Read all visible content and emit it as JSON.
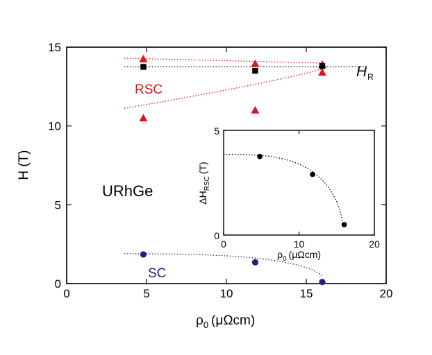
{
  "chart_data": [
    {
      "type": "scatter",
      "name": "main",
      "xlabel": "ρ0 (μΩcm)",
      "xlabel_symbol": "ρ",
      "xlabel_sub": "0",
      "xlabel_unit": "(μΩcm)",
      "ylabel": "H (T)",
      "xlim": [
        0,
        20
      ],
      "ylim": [
        0,
        15
      ],
      "xticks": [
        0,
        5,
        10,
        15,
        20
      ],
      "yticks": [
        0,
        5,
        10,
        15
      ],
      "series": [
        {
          "name": "RSC upper",
          "marker": "triangle",
          "color": "#e0141e",
          "x": [
            4.8,
            11.8,
            16.0
          ],
          "y": [
            14.25,
            13.95,
            13.9
          ]
        },
        {
          "name": "RSC lower",
          "marker": "triangle",
          "color": "#e0141e",
          "x": [
            4.8,
            11.8,
            16.0
          ],
          "y": [
            10.5,
            11.0,
            13.4
          ]
        },
        {
          "name": "H_R",
          "marker": "square",
          "color": "#000000",
          "x": [
            4.8,
            11.8,
            16.0
          ],
          "y": [
            13.75,
            13.5,
            13.8
          ]
        },
        {
          "name": "SC",
          "marker": "circle",
          "color": "#1f237a",
          "x": [
            4.8,
            11.8,
            16.0
          ],
          "y": [
            1.85,
            1.35,
            0.1
          ]
        }
      ],
      "annotations": {
        "rsc": "RSC",
        "sc": "SC",
        "compound": "URhGe",
        "hr_symbol": "H",
        "hr_sub": "R"
      }
    },
    {
      "type": "scatter",
      "name": "inset",
      "xlabel": "ρ0 (μΩcm)",
      "xlabel_symbol": "ρ",
      "xlabel_sub": "0",
      "xlabel_unit": "(μΩcm)",
      "ylabel": "ΔH_RSC (T)",
      "ylabel_main": "ΔH",
      "ylabel_sub": "RSC",
      "ylabel_unit": "(T)",
      "xlim": [
        0,
        20
      ],
      "ylim": [
        0,
        5
      ],
      "xticks": [
        0,
        10,
        20
      ],
      "yticks": [
        0,
        5
      ],
      "series": [
        {
          "name": "ΔH_RSC",
          "marker": "circle",
          "color": "#000000",
          "x": [
            4.8,
            11.8,
            16.0
          ],
          "y": [
            3.75,
            2.9,
            0.5
          ]
        }
      ]
    }
  ]
}
